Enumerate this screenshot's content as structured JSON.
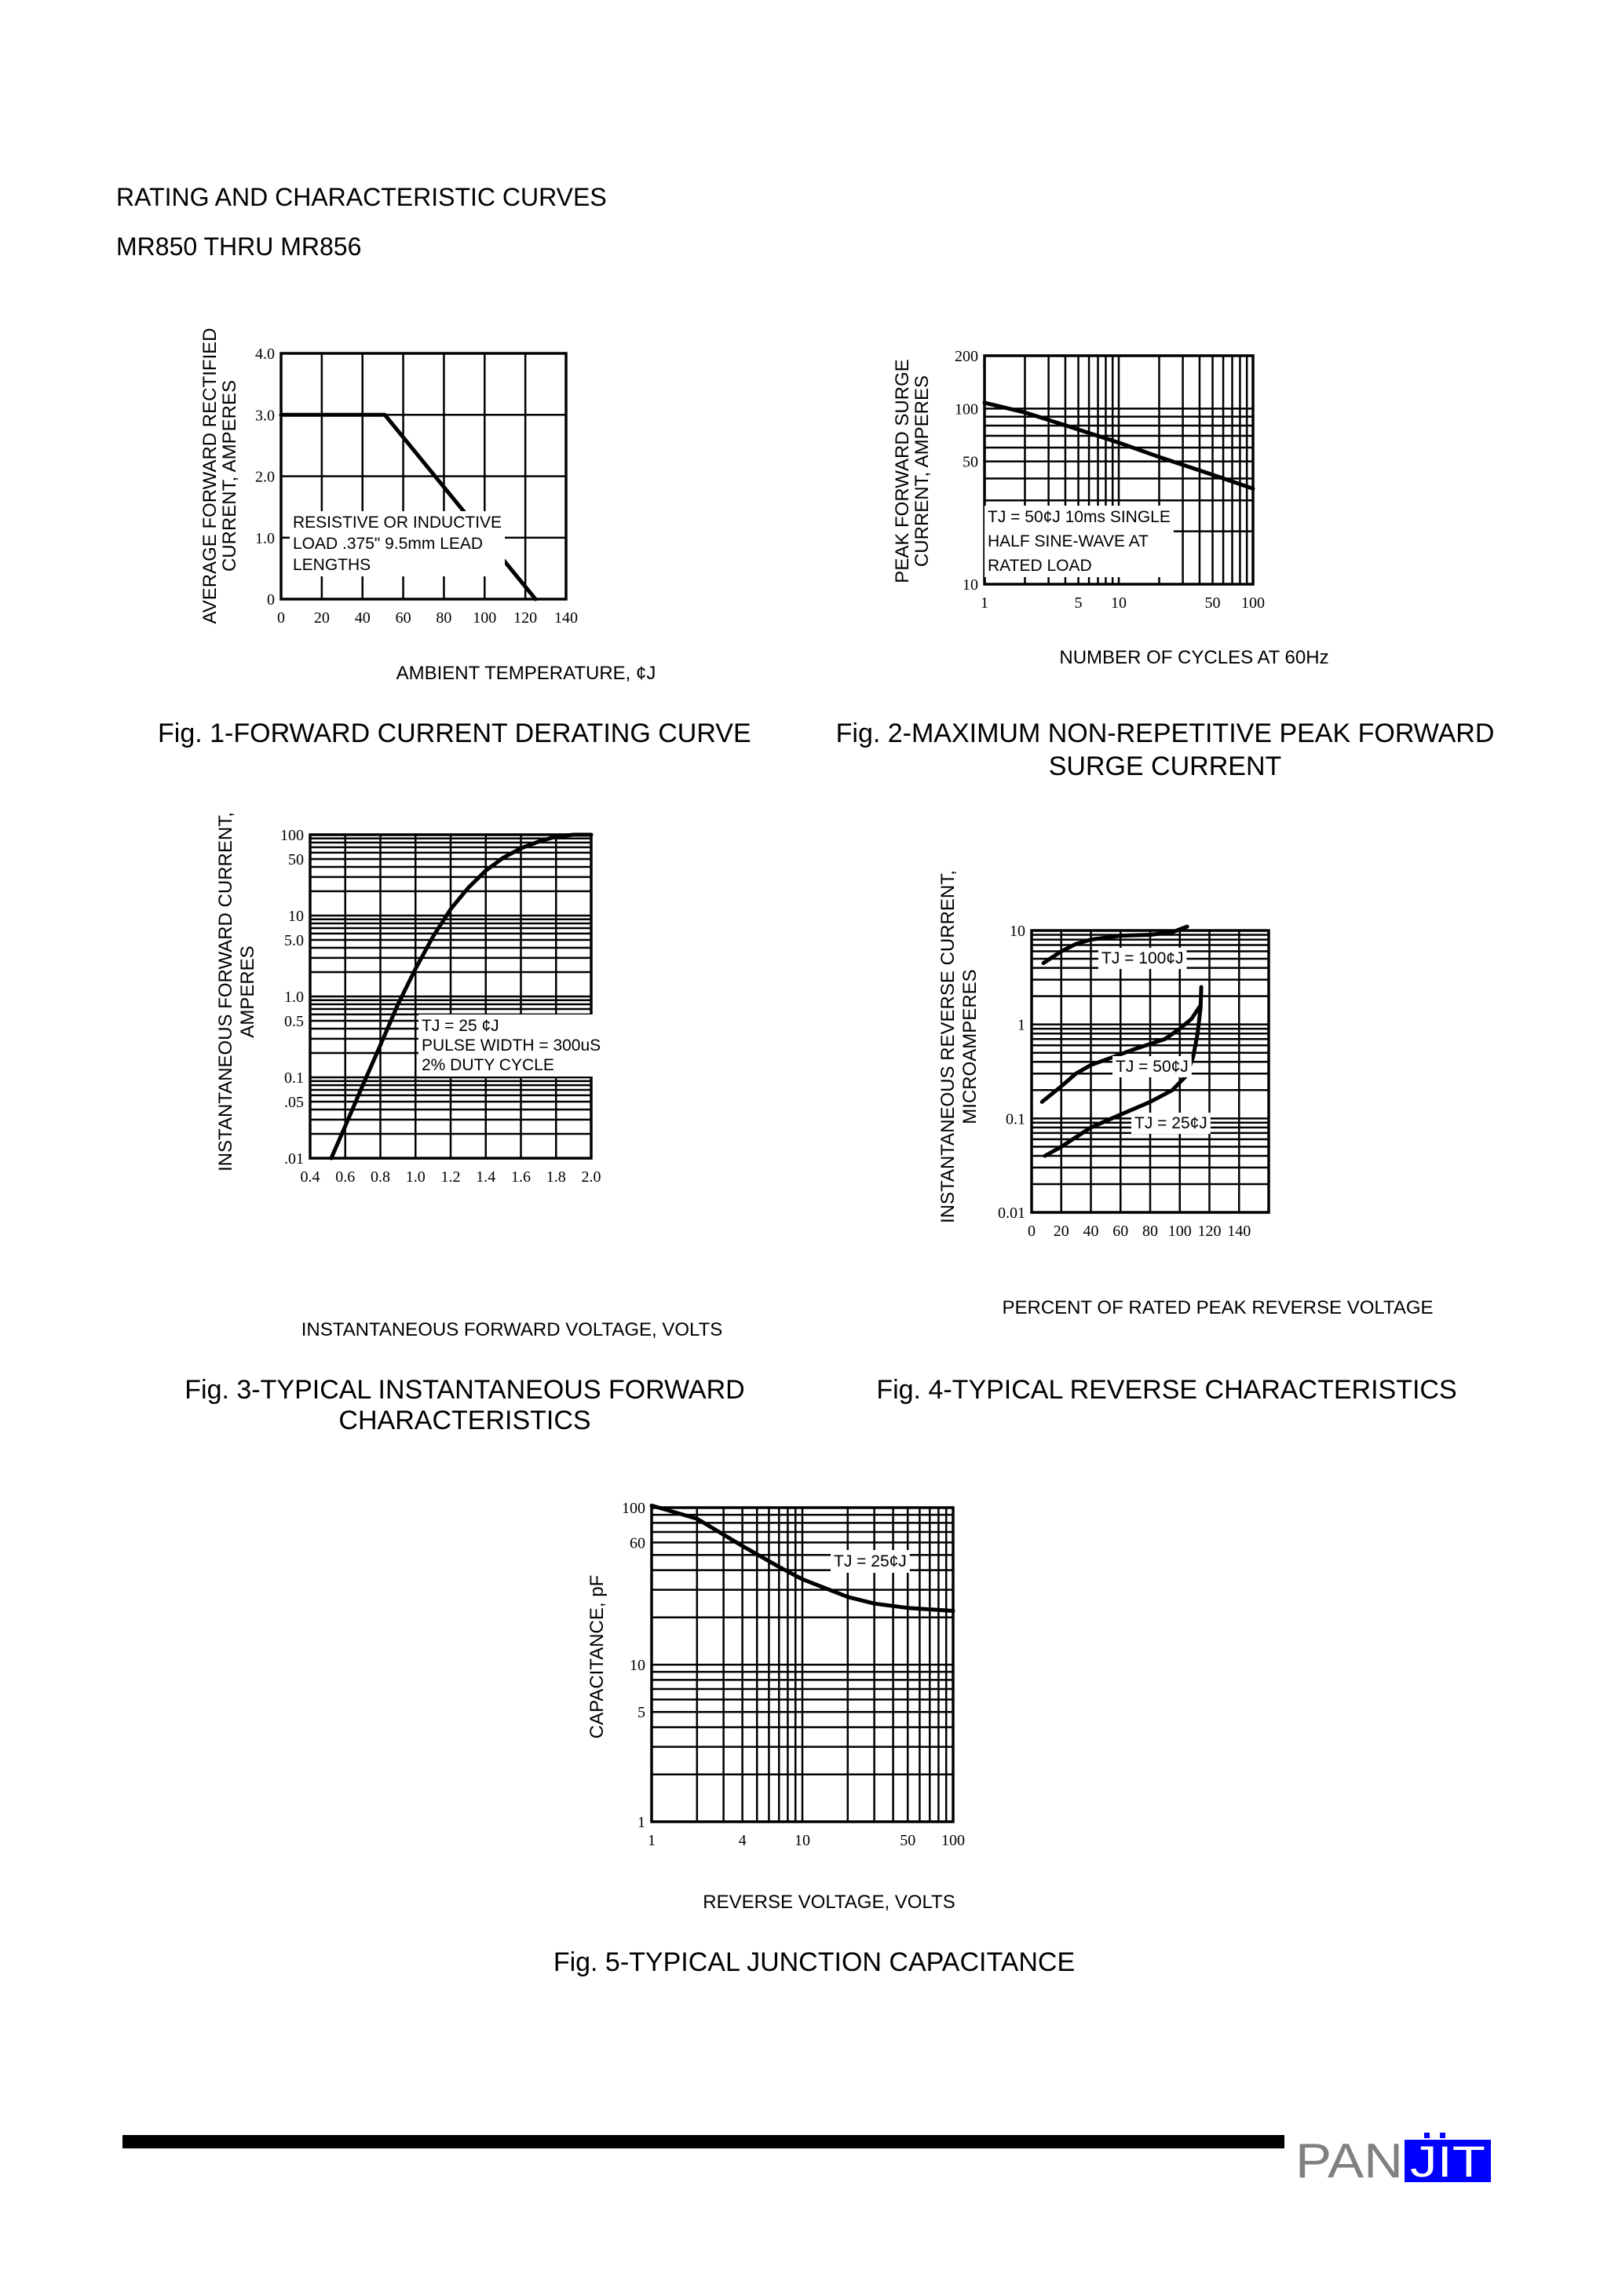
{
  "header": {
    "title": "RATING AND CHARACTERISTIC CURVES",
    "subtitle": "MR850 THRU MR856"
  },
  "footer": {
    "logo_text": "PANJIT",
    "logo_gray": "PAN",
    "logo_blue": "JIT",
    "logo_colors": {
      "gray": "#808080",
      "blue": "#0000ff"
    }
  },
  "chart_data": [
    {
      "type": "line",
      "title_lines": [
        "Fig. 1-FORWARD CURRENT DERATING CURVE"
      ],
      "xlabel": "AMBIENT TEMPERATURE, ¢J",
      "ylabel_lines": [
        "AVERAGE FORWARD RECTIFIED",
        "CURRENT, AMPERES"
      ],
      "xscale": "linear",
      "yscale": "linear",
      "xlim": [
        0,
        140
      ],
      "ylim": [
        0,
        4
      ],
      "xticks": [
        {
          "v": 0,
          "t": "0"
        },
        {
          "v": 20,
          "t": "20"
        },
        {
          "v": 40,
          "t": "40"
        },
        {
          "v": 60,
          "t": "60"
        },
        {
          "v": 80,
          "t": "80"
        },
        {
          "v": 100,
          "t": "100"
        },
        {
          "v": 120,
          "t": "120"
        },
        {
          "v": 140,
          "t": "140"
        }
      ],
      "yticks": [
        {
          "v": 0,
          "t": "0"
        },
        {
          "v": 1,
          "t": "1.0"
        },
        {
          "v": 2,
          "t": "2.0"
        },
        {
          "v": 3,
          "t": "3.0"
        },
        {
          "v": 4,
          "t": "4.0"
        }
      ],
      "grid": true,
      "annotations": [
        {
          "lines": [
            "RESISTIVE OR INDUCTIVE",
            "LOAD .375\" 9.5mm LEAD",
            "LENGTHS"
          ]
        }
      ],
      "series": [
        {
          "x": [
            0,
            51,
            125
          ],
          "y": [
            3.0,
            3.0,
            0
          ]
        }
      ]
    },
    {
      "type": "line",
      "title_lines": [
        "Fig. 2-MAXIMUM NON-REPETITIVE PEAK FORWARD",
        "SURGE CURRENT"
      ],
      "xlabel": "NUMBER OF CYCLES AT 60Hz",
      "ylabel_lines": [
        "PEAK FORWARD SURGE",
        "CURRENT, AMPERES"
      ],
      "xscale": "log",
      "yscale": "log",
      "xlim": [
        1,
        100
      ],
      "ylim": [
        10,
        200
      ],
      "xticks": [
        {
          "v": 1,
          "t": "1"
        },
        {
          "v": 5,
          "t": "5"
        },
        {
          "v": 10,
          "t": "10"
        },
        {
          "v": 50,
          "t": "50"
        },
        {
          "v": 100,
          "t": "100"
        }
      ],
      "yticks": [
        {
          "v": 10,
          "t": "10"
        },
        {
          "v": 50,
          "t": "50"
        },
        {
          "v": 100,
          "t": "100"
        },
        {
          "v": 200,
          "t": "200"
        }
      ],
      "grid": true,
      "annotations": [
        {
          "lines": [
            "TJ = 50¢J 10ms SINGLE",
            "HALF SINE-WAVE AT",
            "RATED LOAD"
          ]
        }
      ],
      "series": [
        {
          "x": [
            1,
            2,
            5,
            10,
            20,
            50,
            100
          ],
          "y": [
            108,
            95,
            76,
            64,
            53,
            42,
            35
          ]
        }
      ]
    },
    {
      "type": "line",
      "title_lines": [
        "Fig. 3-TYPICAL INSTANTANEOUS FORWARD",
        "CHARACTERISTICS"
      ],
      "xlabel": "INSTANTANEOUS FORWARD VOLTAGE, VOLTS",
      "ylabel_lines": [
        "INSTANTANEOUS FORWARD CURRENT,",
        "AMPERES"
      ],
      "xscale": "linear",
      "yscale": "log",
      "xlim": [
        0.4,
        2.0
      ],
      "ylim": [
        0.01,
        100
      ],
      "xticks": [
        {
          "v": 0.4,
          "t": "0.4"
        },
        {
          "v": 0.6,
          "t": "0.6"
        },
        {
          "v": 0.8,
          "t": "0.8"
        },
        {
          "v": 1.0,
          "t": "1.0"
        },
        {
          "v": 1.2,
          "t": "1.2"
        },
        {
          "v": 1.4,
          "t": "1.4"
        },
        {
          "v": 1.6,
          "t": "1.6"
        },
        {
          "v": 1.8,
          "t": "1.8"
        },
        {
          "v": 2.0,
          "t": "2.0"
        }
      ],
      "yticks": [
        {
          "v": 0.01,
          "t": ".01"
        },
        {
          "v": 0.05,
          "t": ".05"
        },
        {
          "v": 0.1,
          "t": "0.1"
        },
        {
          "v": 0.5,
          "t": "0.5"
        },
        {
          "v": 1,
          "t": "1.0"
        },
        {
          "v": 5,
          "t": "5.0"
        },
        {
          "v": 10,
          "t": "10"
        },
        {
          "v": 50,
          "t": "50"
        },
        {
          "v": 100,
          "t": "100"
        }
      ],
      "grid": true,
      "annotations": [
        {
          "lines": [
            "TJ = 25 ¢J",
            "PULSE WIDTH = 300uS",
            "2% DUTY CYCLE"
          ]
        }
      ],
      "series": [
        {
          "x": [
            0.52,
            0.6,
            0.7,
            0.8,
            0.9,
            1.0,
            1.1,
            1.2,
            1.3,
            1.4,
            1.5,
            1.6,
            1.7,
            1.8,
            1.9,
            2.0
          ],
          "y": [
            0.01,
            0.025,
            0.08,
            0.25,
            0.8,
            2.2,
            5.5,
            12,
            22,
            36,
            52,
            68,
            82,
            95,
            100,
            100
          ]
        }
      ]
    },
    {
      "type": "line",
      "title_lines": [
        "Fig. 4-TYPICAL REVERSE CHARACTERISTICS"
      ],
      "xlabel": "PERCENT OF RATED PEAK REVERSE VOLTAGE",
      "ylabel_lines": [
        "INSTANTANEOUS REVERSE CURRENT,",
        "MICROAMPERES"
      ],
      "xscale": "linear",
      "yscale": "log",
      "xlim": [
        0,
        160
      ],
      "ylim": [
        0.01,
        10
      ],
      "xticks": [
        {
          "v": 0,
          "t": "0"
        },
        {
          "v": 20,
          "t": "20"
        },
        {
          "v": 40,
          "t": "40"
        },
        {
          "v": 60,
          "t": "60"
        },
        {
          "v": 80,
          "t": "80"
        },
        {
          "v": 100,
          "t": "100"
        },
        {
          "v": 120,
          "t": "120"
        },
        {
          "v": 140,
          "t": "140"
        }
      ],
      "yticks": [
        {
          "v": 0.01,
          "t": "0.01"
        },
        {
          "v": 0.1,
          "t": "0.1"
        },
        {
          "v": 1,
          "t": "1"
        },
        {
          "v": 10,
          "t": "10"
        }
      ],
      "grid": true,
      "series": [
        {
          "name": "TJ = 100¢J",
          "x": [
            8,
            20,
            30,
            40,
            60,
            80,
            95,
            105
          ],
          "y": [
            4.5,
            6,
            7.2,
            8,
            8.8,
            9,
            9.6,
            11
          ]
        },
        {
          "name": "TJ = 50¢J",
          "x": [
            7,
            20,
            30,
            40,
            55,
            70,
            90,
            100,
            108,
            114
          ],
          "y": [
            0.15,
            0.22,
            0.3,
            0.37,
            0.45,
            0.55,
            0.7,
            0.9,
            1.15,
            1.6
          ]
        },
        {
          "name": "TJ = 25¢J",
          "x": [
            9,
            20,
            40,
            60,
            80,
            95,
            104,
            109,
            112,
            114,
            114.5
          ],
          "y": [
            0.04,
            0.05,
            0.08,
            0.11,
            0.15,
            0.2,
            0.28,
            0.45,
            0.8,
            1.5,
            2.5
          ]
        }
      ]
    },
    {
      "type": "line",
      "title_lines": [
        "Fig. 5-TYPICAL JUNCTION CAPACITANCE"
      ],
      "xlabel": "REVERSE VOLTAGE, VOLTS",
      "ylabel_lines": [
        "CAPACITANCE, pF"
      ],
      "xscale": "log",
      "yscale": "log",
      "xlim": [
        1,
        100
      ],
      "ylim": [
        1,
        100
      ],
      "xticks": [
        {
          "v": 1,
          "t": "1"
        },
        {
          "v": 4,
          "t": "4"
        },
        {
          "v": 10,
          "t": "10"
        },
        {
          "v": 50,
          "t": "50"
        },
        {
          "v": 100,
          "t": "100"
        }
      ],
      "yticks": [
        {
          "v": 1,
          "t": "1"
        },
        {
          "v": 5,
          "t": "5"
        },
        {
          "v": 10,
          "t": "10"
        },
        {
          "v": 60,
          "t": "60"
        },
        {
          "v": 100,
          "t": "100"
        }
      ],
      "grid": true,
      "annotations": [
        {
          "lines": [
            "TJ = 25¢J"
          ]
        }
      ],
      "series": [
        {
          "x": [
            1,
            2,
            4,
            7,
            10,
            20,
            30,
            50,
            100
          ],
          "y": [
            103,
            85,
            57,
            42,
            35,
            27,
            24.5,
            23,
            22
          ]
        }
      ]
    }
  ]
}
